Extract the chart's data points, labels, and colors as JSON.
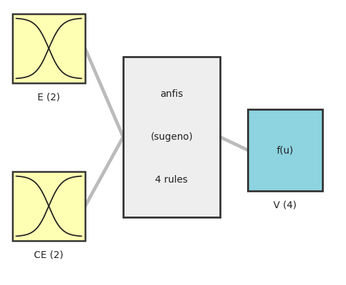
{
  "bg_color": "#ffffff",
  "yellow_color": "#ffffb3",
  "yellow_edge": "#333333",
  "gray_box_color": "#eeeeee",
  "gray_box_edge": "#333333",
  "teal_color": "#8dd3e0",
  "teal_edge": "#333333",
  "connector_color": "#bbbbbb",
  "connector_lw": 3.5,
  "curve_color": "#222222",
  "curve_lw": 1.3,
  "box1_label": "E (2)",
  "box2_label": "CE (2)",
  "center_label_lines": [
    "anfis",
    "(sugeno)",
    "4 rules"
  ],
  "output_label": "f(u)",
  "output_bottom_label": "V (4)",
  "label_fontsize": 10,
  "inner_label_fontsize": 10,
  "yb1": [
    18,
    20,
    105,
    100
  ],
  "yb2": [
    18,
    248,
    105,
    100
  ],
  "cb": [
    178,
    82,
    140,
    232
  ],
  "tb": [
    358,
    158,
    108,
    118
  ]
}
